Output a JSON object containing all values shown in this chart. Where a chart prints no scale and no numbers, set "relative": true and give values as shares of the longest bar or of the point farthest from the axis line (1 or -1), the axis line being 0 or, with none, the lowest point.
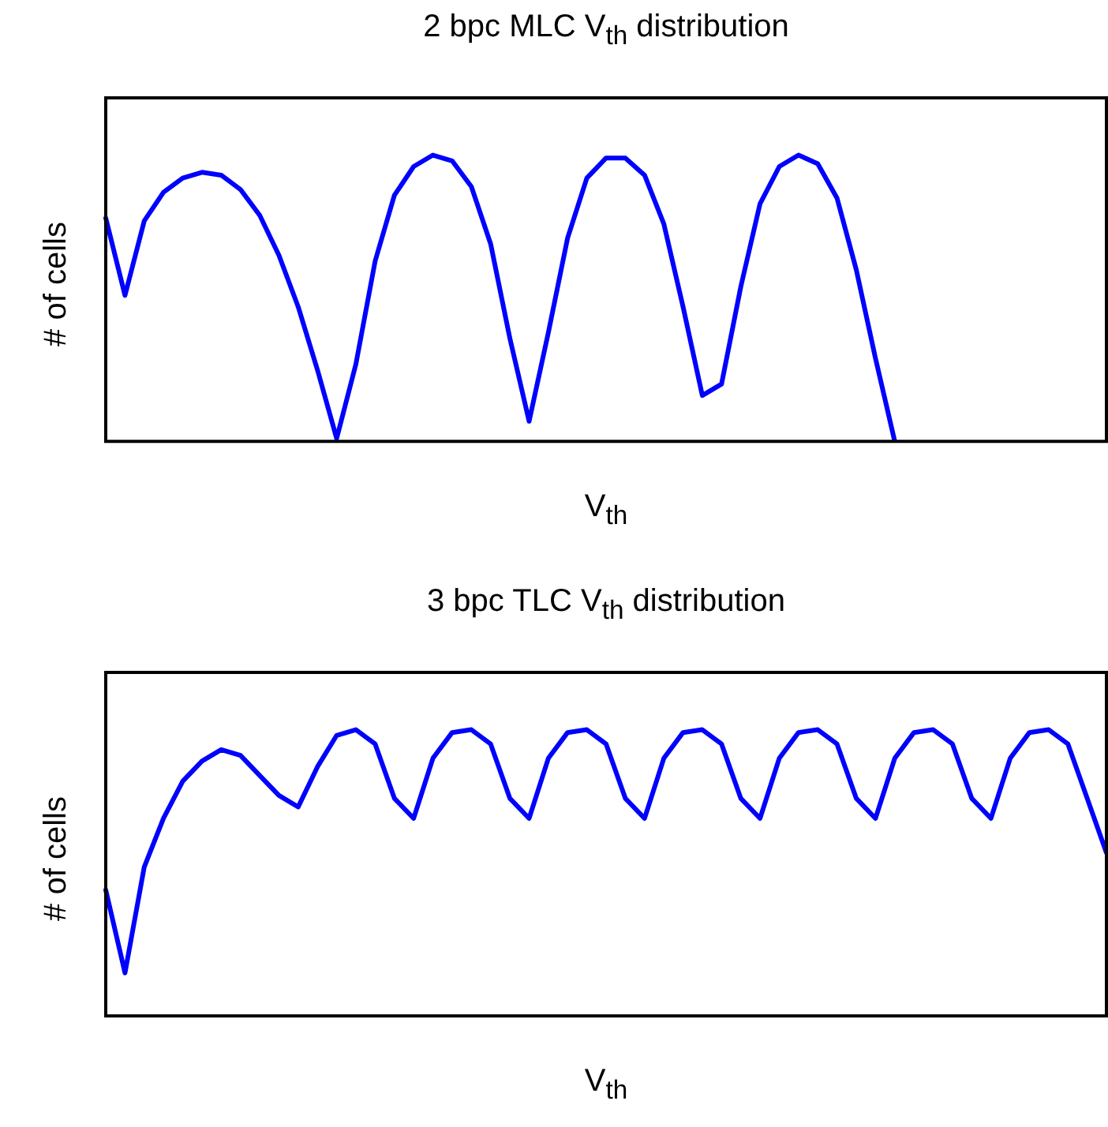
{
  "chart_data": [
    {
      "type": "line",
      "title": "2 bpc MLC V$_{th}$ distribution",
      "xlabel": "V$_{th}$",
      "ylabel": "# of cells",
      "relative": true,
      "grid": false,
      "legend": false,
      "marker": "none",
      "line_style": "solid",
      "categories": [
        null,
        null,
        null,
        null,
        null,
        null,
        null,
        null,
        null,
        null,
        null,
        null,
        null,
        null,
        null,
        null,
        null,
        null,
        null,
        null,
        null,
        null,
        null,
        null,
        null,
        null,
        null,
        null,
        null,
        null,
        null,
        null,
        null,
        null,
        null,
        null,
        null,
        null,
        null,
        null,
        null,
        null,
        null,
        null,
        null,
        null,
        null,
        null,
        null,
        null,
        null,
        null,
        null
      ],
      "series": [
        {
          "color": "#0000ff",
          "values": [
            0.78,
            0.51,
            0.77,
            0.87,
            0.92,
            0.94,
            0.93,
            0.88,
            0.79,
            0.65,
            0.47,
            0.25,
            0.01,
            0.27,
            0.63,
            0.86,
            0.96,
            1,
            0.98,
            0.89,
            0.69,
            0.36,
            0.07,
            0.38,
            0.71,
            0.92,
            0.99,
            0.99,
            0.93,
            0.76,
            0.47,
            0.16,
            0.2,
            0.54,
            0.83,
            0.96,
            1,
            0.97,
            0.85,
            0.6,
            0.29,
            0,
            null,
            null,
            null,
            null,
            null,
            null,
            null,
            null,
            null,
            null,
            null
          ]
        }
      ]
    },
    {
      "type": "line",
      "title": "3 bpc TLC V$_{th}$ distribution",
      "xlabel": "V$_{th}$",
      "ylabel": "# of cells",
      "relative": true,
      "grid": false,
      "legend": false,
      "marker": "none",
      "line_style": "solid",
      "categories": [
        null,
        null,
        null,
        null,
        null,
        null,
        null,
        null,
        null,
        null,
        null,
        null,
        null,
        null,
        null,
        null,
        null,
        null,
        null,
        null,
        null,
        null,
        null,
        null,
        null,
        null,
        null,
        null,
        null,
        null,
        null,
        null,
        null,
        null,
        null,
        null,
        null,
        null,
        null,
        null,
        null,
        null,
        null,
        null,
        null,
        null,
        null,
        null,
        null,
        null,
        null,
        null,
        null
      ],
      "series": [
        {
          "color": "#0000ff",
          "values": [
            0.44,
            0.15,
            0.52,
            0.69,
            0.82,
            0.89,
            0.93,
            0.91,
            0.84,
            0.77,
            0.73,
            0.87,
            0.98,
            1,
            0.95,
            0.76,
            0.69,
            0.9,
            0.99,
            1,
            0.95,
            0.76,
            0.69,
            0.9,
            0.99,
            1,
            0.95,
            0.76,
            0.69,
            0.9,
            0.99,
            1,
            0.95,
            0.76,
            0.69,
            0.9,
            0.99,
            1,
            0.95,
            0.76,
            0.69,
            0.9,
            0.99,
            1,
            0.95,
            0.76,
            0.69,
            0.9,
            0.99,
            1,
            0.95,
            0.76,
            0.57
          ]
        }
      ]
    }
  ]
}
